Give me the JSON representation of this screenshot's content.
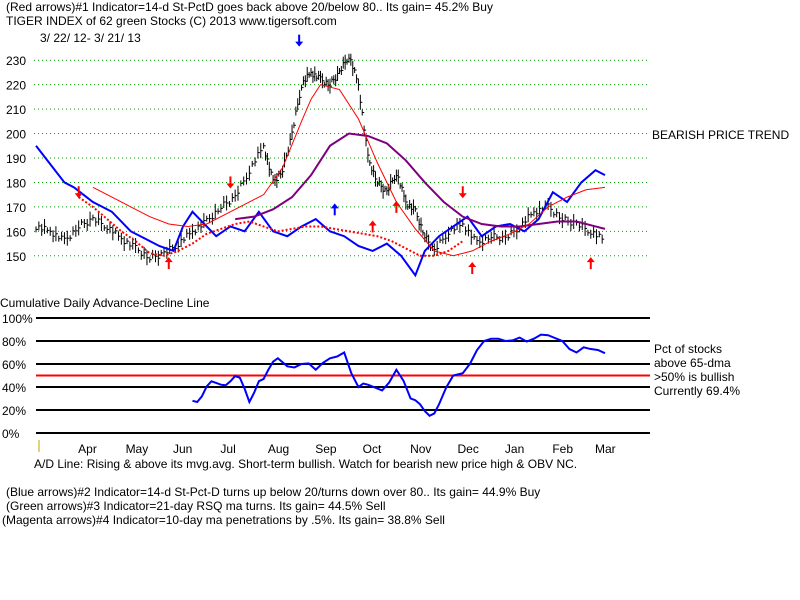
{
  "header": {
    "line1": "(Red arrows)#1 Indicator=14-d St-PctD goes back above 20/below 80.. Its gain= 45.2% Buy",
    "line2": "TIGER INDEX of  62 green Stocks  (C) 2013  www.tigersoft.com",
    "date_range": "3/ 22/ 12- 3/ 21/ 13"
  },
  "trend_label": "BEARISH PRICE TREND",
  "adl_title": "Cumulative Daily Advance-Decline Line",
  "pct_panel": {
    "legend_line1": "Pct of stocks",
    "legend_line2": "above 65-dma",
    "legend_line3": ">50% is bullish",
    "legend_line4": "Currently  69.4%"
  },
  "footer": {
    "adl_comment": "A/D Line: Rising & above its mvg.avg. Short-term bullish. Watch for bearish new price high & OBV NC.",
    "note_blue": "(Blue arrows)#2 Indicator=14-d St-Pct-D turns up below 20/turns down over 80.. Its gain= 44.9% Buy",
    "note_green": "(Green arrows)#3 Indicator=21-day RSQ ma turns. Its gain= 44.5% Sell",
    "note_magenta": "(Magenta arrows)#4 Indicator=10-day ma penetrations by .5%. Its gain= 38.8% Sell"
  },
  "chart_data": [
    {
      "type": "line",
      "title": "TIGER INDEX of 62 green Stocks",
      "ylim": [
        145,
        235
      ],
      "yticks": [
        150,
        160,
        170,
        180,
        190,
        200,
        210,
        220,
        230
      ],
      "x_range": [
        0,
        12
      ],
      "months": [
        "Apr",
        "May",
        "Jun",
        "Jul",
        "Aug",
        "Sep",
        "Oct",
        "Nov",
        "Dec",
        "Jan",
        "Feb",
        "Mar"
      ],
      "month_x": [
        1.1,
        2.1,
        3.1,
        4.1,
        5.1,
        6.1,
        7.1,
        8.1,
        9.1,
        10.1,
        11.1,
        12.0
      ],
      "series": [
        {
          "name": "Index (high-low bars)",
          "color": "#000000",
          "x": [
            0,
            0.3,
            0.6,
            0.9,
            1.2,
            1.5,
            1.8,
            2.1,
            2.4,
            2.7,
            3.0,
            3.3,
            3.6,
            3.9,
            4.2,
            4.5,
            4.8,
            5.0,
            5.2,
            5.4,
            5.6,
            5.8,
            6.0,
            6.2,
            6.4,
            6.6,
            6.8,
            7.0,
            7.2,
            7.4,
            7.6,
            7.8,
            8.0,
            8.2,
            8.4,
            8.7,
            9.0,
            9.3,
            9.6,
            9.9,
            10.2,
            10.5,
            10.8,
            11.1,
            11.4,
            11.7,
            12.0
          ],
          "values": [
            162,
            160,
            156,
            162,
            165,
            162,
            157,
            153,
            149,
            151,
            155,
            160,
            164,
            170,
            174,
            185,
            195,
            180,
            185,
            200,
            220,
            225,
            222,
            220,
            225,
            232,
            220,
            190,
            180,
            176,
            184,
            172,
            168,
            158,
            152,
            160,
            163,
            155,
            158,
            157,
            162,
            168,
            170,
            165,
            163,
            160,
            156
          ]
        },
        {
          "name": "Blue indicator",
          "color": "#0000ff",
          "x": [
            0,
            0.2,
            0.4,
            0.6,
            0.8,
            1.0,
            1.2,
            1.4,
            1.6,
            1.8,
            2.0,
            2.3,
            2.6,
            2.9,
            3.1,
            3.3,
            3.5,
            3.8,
            4.1,
            4.4,
            4.7,
            5.0,
            5.3,
            5.6,
            5.9,
            6.2,
            6.5,
            6.8,
            7.1,
            7.4,
            7.7,
            8.0,
            8.2,
            8.5,
            8.8,
            9.1,
            9.4,
            9.7,
            10.0,
            10.3,
            10.6,
            10.9,
            11.2,
            11.5,
            11.8,
            12.0
          ],
          "values": [
            195,
            190,
            185,
            180,
            178,
            175,
            172,
            170,
            168,
            164,
            160,
            157,
            154,
            152,
            162,
            168,
            164,
            158,
            162,
            160,
            168,
            160,
            158,
            162,
            165,
            160,
            158,
            154,
            152,
            155,
            150,
            142,
            152,
            158,
            162,
            166,
            158,
            162,
            163,
            160,
            165,
            176,
            172,
            180,
            185,
            183
          ]
        },
        {
          "name": "Purple moving average",
          "color": "#7f007f",
          "x": [
            4.2,
            4.6,
            5.0,
            5.4,
            5.8,
            6.2,
            6.6,
            7.0,
            7.4,
            7.8,
            8.2,
            8.6,
            9.0,
            9.4,
            9.8,
            10.2,
            10.6,
            11.0,
            11.4,
            11.8,
            12.0
          ],
          "values": [
            165,
            166,
            169,
            174,
            183,
            195,
            200,
            199,
            196,
            189,
            180,
            172,
            166,
            163,
            162,
            162,
            163,
            164,
            164,
            162,
            161
          ]
        },
        {
          "name": "Red moving average",
          "color": "#ff0000",
          "x": [
            1.2,
            1.6,
            2.0,
            2.4,
            2.8,
            3.2,
            3.6,
            4.0,
            4.4,
            4.8,
            5.2,
            5.6,
            5.8,
            6.0,
            6.4,
            6.8,
            7.2,
            7.6,
            8.0,
            8.4,
            8.8,
            9.2,
            9.6,
            10.0,
            10.4,
            10.8,
            11.2,
            11.6,
            12.0
          ],
          "values": [
            178,
            174,
            170,
            166,
            163,
            162,
            163,
            167,
            171,
            175,
            186,
            205,
            214,
            220,
            218,
            206,
            188,
            172,
            161,
            152,
            150,
            152,
            156,
            159,
            163,
            170,
            174,
            177,
            178
          ]
        },
        {
          "name": "Red 200-day (dotted)",
          "color": "#ff0000",
          "x": [
            0.9,
            1.2,
            1.5,
            1.8,
            2.1,
            2.4,
            2.7,
            3.0,
            3.3,
            3.6,
            3.9,
            4.2,
            4.5,
            4.8,
            5.1,
            5.4,
            5.7,
            6.0,
            6.3,
            6.6,
            6.9,
            7.2,
            7.5,
            7.8,
            8.1,
            8.4,
            8.7,
            9.0
          ],
          "values": [
            174,
            170,
            165,
            160,
            156,
            151,
            150,
            152,
            155,
            159,
            161,
            163,
            164,
            162,
            160,
            161,
            162,
            162,
            161,
            160,
            159,
            158,
            156,
            153,
            150,
            150,
            152,
            156
          ]
        }
      ],
      "arrows": [
        {
          "x": 0.9,
          "y": 176,
          "dir": "down",
          "color": "#ff0000"
        },
        {
          "x": 2.8,
          "y": 147,
          "dir": "up",
          "color": "#ff0000"
        },
        {
          "x": 4.1,
          "y": 180,
          "dir": "down",
          "color": "#ff0000"
        },
        {
          "x": 5.55,
          "y": 238,
          "dir": "down",
          "color": "#0000ff"
        },
        {
          "x": 6.3,
          "y": 169,
          "dir": "up",
          "color": "#0000ff"
        },
        {
          "x": 7.1,
          "y": 162,
          "dir": "up",
          "color": "#ff0000"
        },
        {
          "x": 7.6,
          "y": 170,
          "dir": "up",
          "color": "#ff0000"
        },
        {
          "x": 9.0,
          "y": 176,
          "dir": "down",
          "color": "#ff0000"
        },
        {
          "x": 9.2,
          "y": 145,
          "dir": "up",
          "color": "#ff0000"
        },
        {
          "x": 11.7,
          "y": 147,
          "dir": "up",
          "color": "#ff0000"
        }
      ]
    },
    {
      "type": "line",
      "title": "Cumulative Daily Advance-Decline Line",
      "ylim": [
        0,
        100
      ],
      "yticks": [
        0,
        20,
        40,
        60,
        80,
        100
      ],
      "ytick_labels": [
        "0%",
        "20%",
        "40%",
        "60%",
        "80%",
        "100%"
      ],
      "reference_line": {
        "value": 50,
        "label": ">50% is bullish",
        "color": "#ff0000"
      },
      "series": [
        {
          "name": "Pct of stocks above 65-dma",
          "color": "#0000ff",
          "x": [
            3.3,
            3.5,
            3.7,
            3.9,
            4.1,
            4.3,
            4.5,
            4.7,
            4.9,
            5.1,
            5.3,
            5.6,
            5.9,
            6.2,
            6.5,
            6.8,
            7.0,
            7.3,
            7.6,
            7.9,
            8.1,
            8.3,
            8.5,
            8.8,
            9.0,
            9.3,
            9.6,
            9.9,
            10.2,
            10.5,
            10.8,
            11.1,
            11.4,
            11.7,
            12.0
          ],
          "values": [
            28,
            32,
            45,
            42,
            45,
            48,
            27,
            45,
            55,
            65,
            58,
            60,
            55,
            65,
            70,
            40,
            42,
            37,
            55,
            30,
            25,
            15,
            25,
            50,
            52,
            72,
            82,
            80,
            83,
            82,
            85,
            80,
            70,
            73,
            69.4
          ]
        }
      ]
    }
  ]
}
